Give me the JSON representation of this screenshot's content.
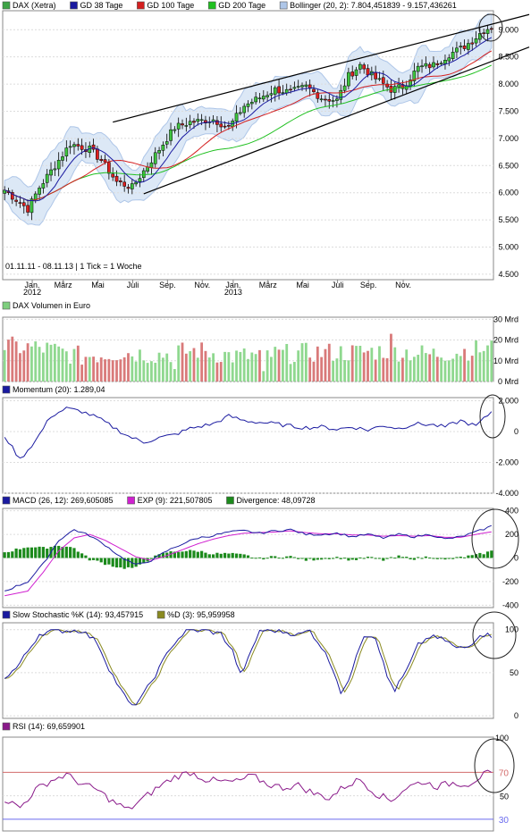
{
  "chart_data": [
    {
      "type": "candlestick",
      "legend": [
        {
          "label": "DAX (Xetra)",
          "color": "#3ea346"
        },
        {
          "label": "GD 38 Tage",
          "color": "#1a1aa0"
        },
        {
          "label": "GD 100 Tage",
          "color": "#d42020"
        },
        {
          "label": "GD 200 Tage",
          "color": "#20c020"
        },
        {
          "label": "Bollinger (20, 2): 7.804,451839 - 9.157,436261",
          "color": "#aec6e8"
        }
      ],
      "date_range": "01.11.11 - 08.11.13 | 1 Tick = 1 Woche",
      "y_ticks": [
        "9.000",
        "8.500",
        "8.000",
        "7.500",
        "7.000",
        "6.500",
        "6.000",
        "5.500",
        "5.000",
        "4.500"
      ],
      "y_tick_values": [
        9000,
        8500,
        8000,
        7500,
        7000,
        6500,
        6000,
        5500,
        5000,
        4500
      ],
      "ylim": [
        4400,
        9350
      ],
      "x_month_labels": [
        "Jan.",
        "März",
        "Mai",
        "Juli",
        "Sep.",
        "Nov.",
        "Jan.",
        "März",
        "Mai",
        "Juli",
        "Sep.",
        "Nov."
      ],
      "x_year_labels": [
        "2012",
        "2013"
      ],
      "series_close_anchors": [
        [
          0,
          6050
        ],
        [
          6,
          5700
        ],
        [
          9,
          6100
        ],
        [
          13,
          6500
        ],
        [
          17,
          6900
        ],
        [
          22,
          6800
        ],
        [
          25,
          6600
        ],
        [
          29,
          6200
        ],
        [
          33,
          6100
        ],
        [
          36,
          6400
        ],
        [
          40,
          6800
        ],
        [
          44,
          7200
        ],
        [
          48,
          7300
        ],
        [
          54,
          7350
        ],
        [
          58,
          7200
        ],
        [
          62,
          7600
        ],
        [
          66,
          7750
        ],
        [
          70,
          7900
        ],
        [
          74,
          7850
        ],
        [
          78,
          7950
        ],
        [
          82,
          7750
        ],
        [
          86,
          7700
        ],
        [
          89,
          8150
        ],
        [
          92,
          8350
        ],
        [
          96,
          8100
        ],
        [
          100,
          7900
        ],
        [
          103,
          7950
        ],
        [
          107,
          8300
        ],
        [
          111,
          8350
        ],
        [
          115,
          8550
        ],
        [
          118,
          8650
        ],
        [
          121,
          8800
        ],
        [
          124,
          9000
        ],
        [
          126,
          9050
        ]
      ],
      "bollinger_band": "7.804,451839 - 9.157,436261"
    },
    {
      "type": "bar",
      "legend": [
        {
          "label": "DAX Volumen in Euro",
          "color": "#7ecf7e"
        }
      ],
      "y_ticks": [
        "30 Mrd",
        "20 Mrd",
        "10 Mrd",
        "0 Mrd"
      ],
      "y_tick_values": [
        30,
        20,
        10,
        0
      ],
      "ylim": [
        0,
        31
      ],
      "ylabel": "Mrd",
      "volume_anchors": [
        [
          0,
          17
        ],
        [
          10,
          16
        ],
        [
          20,
          12
        ],
        [
          30,
          14
        ],
        [
          40,
          13
        ],
        [
          50,
          15
        ],
        [
          60,
          12
        ],
        [
          70,
          13
        ],
        [
          80,
          14
        ],
        [
          90,
          14
        ],
        [
          100,
          15
        ],
        [
          110,
          13
        ],
        [
          120,
          15
        ],
        [
          126,
          16
        ]
      ]
    },
    {
      "type": "line",
      "legend": [
        {
          "label": "Momentum (20): 1.289,04",
          "color": "#1a1aa0"
        }
      ],
      "y_ticks": [
        "2.000",
        "0",
        "-2.000",
        "-4.000"
      ],
      "y_tick_values": [
        2000,
        0,
        -2000,
        -4000
      ],
      "ylim": [
        -4000,
        2200
      ],
      "momentum_anchors": [
        [
          0,
          -300
        ],
        [
          4,
          -1800
        ],
        [
          8,
          -600
        ],
        [
          12,
          1000
        ],
        [
          16,
          1500
        ],
        [
          20,
          1300
        ],
        [
          24,
          900
        ],
        [
          28,
          300
        ],
        [
          32,
          -300
        ],
        [
          36,
          -700
        ],
        [
          40,
          -400
        ],
        [
          44,
          -200
        ],
        [
          48,
          200
        ],
        [
          54,
          500
        ],
        [
          58,
          1000
        ],
        [
          62,
          700
        ],
        [
          66,
          600
        ],
        [
          70,
          500
        ],
        [
          74,
          350
        ],
        [
          78,
          250
        ],
        [
          82,
          300
        ],
        [
          86,
          150
        ],
        [
          90,
          300
        ],
        [
          94,
          100
        ],
        [
          98,
          400
        ],
        [
          102,
          200
        ],
        [
          106,
          500
        ],
        [
          110,
          450
        ],
        [
          114,
          300
        ],
        [
          118,
          700
        ],
        [
          122,
          350
        ],
        [
          126,
          1289
        ]
      ]
    },
    {
      "type": "line",
      "legend": [
        {
          "label": "MACD (26, 12): 269,605085",
          "color": "#1a1aa0"
        },
        {
          "label": "EXP (9): 221,507805",
          "color": "#d020d0"
        },
        {
          "label": "Divergence: 48,09728",
          "color": "#1b8a1b"
        }
      ],
      "y_ticks": [
        "400",
        "200",
        "0",
        "-200",
        "-400"
      ],
      "y_tick_values": [
        400,
        200,
        0,
        -200,
        -400
      ],
      "ylim": [
        -420,
        420
      ],
      "macd_anchors": [
        [
          0,
          -280
        ],
        [
          6,
          -200
        ],
        [
          10,
          -50
        ],
        [
          14,
          150
        ],
        [
          18,
          240
        ],
        [
          22,
          190
        ],
        [
          26,
          110
        ],
        [
          30,
          10
        ],
        [
          34,
          -60
        ],
        [
          38,
          -20
        ],
        [
          42,
          60
        ],
        [
          46,
          120
        ],
        [
          50,
          170
        ],
        [
          54,
          190
        ],
        [
          58,
          220
        ],
        [
          62,
          230
        ],
        [
          66,
          210
        ],
        [
          70,
          230
        ],
        [
          74,
          240
        ],
        [
          78,
          200
        ],
        [
          82,
          200
        ],
        [
          86,
          210
        ],
        [
          90,
          180
        ],
        [
          94,
          200
        ],
        [
          98,
          170
        ],
        [
          102,
          200
        ],
        [
          106,
          180
        ],
        [
          110,
          200
        ],
        [
          114,
          160
        ],
        [
          118,
          180
        ],
        [
          122,
          220
        ],
        [
          126,
          270
        ]
      ],
      "exp_anchors": [
        [
          0,
          -320
        ],
        [
          6,
          -280
        ],
        [
          10,
          -120
        ],
        [
          14,
          60
        ],
        [
          18,
          170
        ],
        [
          22,
          200
        ],
        [
          26,
          150
        ],
        [
          30,
          80
        ],
        [
          34,
          10
        ],
        [
          38,
          -20
        ],
        [
          42,
          20
        ],
        [
          46,
          70
        ],
        [
          50,
          120
        ],
        [
          54,
          160
        ],
        [
          58,
          190
        ],
        [
          62,
          210
        ],
        [
          66,
          215
        ],
        [
          70,
          220
        ],
        [
          74,
          230
        ],
        [
          78,
          215
        ],
        [
          82,
          205
        ],
        [
          86,
          205
        ],
        [
          90,
          195
        ],
        [
          94,
          195
        ],
        [
          98,
          185
        ],
        [
          102,
          190
        ],
        [
          106,
          185
        ],
        [
          110,
          190
        ],
        [
          114,
          175
        ],
        [
          118,
          175
        ],
        [
          122,
          200
        ],
        [
          126,
          222
        ]
      ]
    },
    {
      "type": "line",
      "legend": [
        {
          "label": "Slow Stochastic %K (14): 93,457915",
          "color": "#1a1aa0"
        },
        {
          "label": "%D (3): 95,959958",
          "color": "#8a8a20"
        }
      ],
      "y_ticks": [
        "100",
        "50",
        "0"
      ],
      "y_tick_values": [
        100,
        50,
        0
      ],
      "ylim": [
        -3,
        108
      ],
      "stoch_anchors": [
        [
          0,
          45
        ],
        [
          3,
          55
        ],
        [
          6,
          75
        ],
        [
          9,
          95
        ],
        [
          12,
          98
        ],
        [
          16,
          99
        ],
        [
          20,
          99
        ],
        [
          24,
          85
        ],
        [
          27,
          55
        ],
        [
          30,
          30
        ],
        [
          33,
          10
        ],
        [
          36,
          25
        ],
        [
          40,
          55
        ],
        [
          43,
          80
        ],
        [
          47,
          99
        ],
        [
          52,
          99
        ],
        [
          56,
          95
        ],
        [
          59,
          75
        ],
        [
          61,
          48
        ],
        [
          63,
          65
        ],
        [
          66,
          99
        ],
        [
          70,
          99
        ],
        [
          73,
          97
        ],
        [
          76,
          94
        ],
        [
          79,
          99
        ],
        [
          82,
          80
        ],
        [
          85,
          55
        ],
        [
          87,
          28
        ],
        [
          89,
          38
        ],
        [
          91,
          72
        ],
        [
          93,
          94
        ],
        [
          96,
          92
        ],
        [
          99,
          45
        ],
        [
          101,
          30
        ],
        [
          104,
          52
        ],
        [
          107,
          82
        ],
        [
          110,
          92
        ],
        [
          114,
          88
        ],
        [
          117,
          78
        ],
        [
          120,
          80
        ],
        [
          123,
          95
        ],
        [
          126,
          93
        ]
      ]
    },
    {
      "type": "line",
      "legend": [
        {
          "label": "RSI (14): 69,659901",
          "color": "#8a1a8a"
        }
      ],
      "y_ticks": [
        "100",
        "70",
        "50",
        "30"
      ],
      "y_tick_values": [
        100,
        70,
        50,
        30
      ],
      "ylim": [
        20,
        100
      ],
      "reference_lines": [
        70,
        30
      ],
      "rsi_anchors": [
        [
          0,
          47
        ],
        [
          4,
          40
        ],
        [
          8,
          55
        ],
        [
          12,
          63
        ],
        [
          16,
          68
        ],
        [
          20,
          60
        ],
        [
          24,
          55
        ],
        [
          28,
          45
        ],
        [
          32,
          38
        ],
        [
          36,
          48
        ],
        [
          40,
          58
        ],
        [
          44,
          66
        ],
        [
          48,
          70
        ],
        [
          52,
          64
        ],
        [
          56,
          62
        ],
        [
          60,
          62
        ],
        [
          64,
          67
        ],
        [
          68,
          60
        ],
        [
          72,
          57
        ],
        [
          76,
          59
        ],
        [
          80,
          52
        ],
        [
          84,
          48
        ],
        [
          88,
          58
        ],
        [
          92,
          64
        ],
        [
          96,
          52
        ],
        [
          100,
          46
        ],
        [
          104,
          57
        ],
        [
          108,
          62
        ],
        [
          112,
          58
        ],
        [
          116,
          61
        ],
        [
          120,
          60
        ],
        [
          124,
          68
        ],
        [
          126,
          70
        ]
      ]
    }
  ]
}
